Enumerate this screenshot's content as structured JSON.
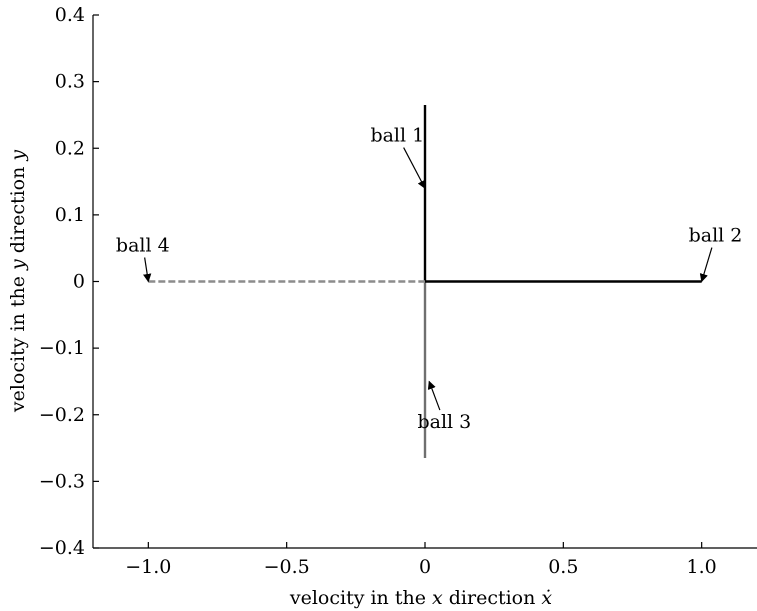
{
  "chart_data": {
    "type": "line",
    "title": "",
    "xlabel": {
      "prefix": "velocity in the ",
      "var": "x",
      "middle": " direction ",
      "dotvar": "ẋ"
    },
    "ylabel": {
      "prefix": "velocity in the ",
      "var": "y",
      "suffix": " direction ",
      "dotvar": "y"
    },
    "xlim": [
      -1.2,
      1.2
    ],
    "ylim": [
      -0.4,
      0.4
    ],
    "xticks": [
      -1.0,
      -0.5,
      0,
      0.5,
      1.0
    ],
    "xtick_labels": [
      "−1.0",
      "−0.5",
      "0",
      "0.5",
      "1.0"
    ],
    "yticks": [
      0.4,
      0.3,
      0.2,
      0.1,
      0,
      -0.1,
      -0.2,
      -0.3,
      -0.4
    ],
    "ytick_labels": [
      "0.4",
      "0.3",
      "0.2",
      "0.1",
      "0",
      "−0.1",
      "−0.2",
      "−0.3",
      "−0.4"
    ],
    "grid": false,
    "series": [
      {
        "name": "ball 1",
        "color": "#000000",
        "style": "solid",
        "x": [
          0,
          0
        ],
        "y": [
          0,
          0.265
        ]
      },
      {
        "name": "ball 2",
        "color": "#000000",
        "style": "solid",
        "x": [
          0,
          1.0
        ],
        "y": [
          0,
          0
        ]
      },
      {
        "name": "ball 3",
        "color": "#6f6f6f",
        "style": "solid",
        "x": [
          0,
          0
        ],
        "y": [
          0,
          -0.265
        ]
      },
      {
        "name": "ball 4",
        "color": "#8c8c8c",
        "style": "dashed",
        "x": [
          -1.0,
          0
        ],
        "y": [
          0,
          0
        ]
      }
    ],
    "annotations": [
      {
        "text": "ball 1",
        "point": [
          0,
          0.14
        ],
        "text_at": [
          -0.1,
          0.21
        ]
      },
      {
        "text": "ball 2",
        "point": [
          1.0,
          0.0
        ],
        "text_at": [
          1.05,
          0.06
        ]
      },
      {
        "text": "ball 3",
        "point": [
          0.015,
          -0.15
        ],
        "text_at": [
          0.07,
          -0.22
        ]
      },
      {
        "text": "ball 4",
        "point": [
          -1.0,
          0.0
        ],
        "text_at": [
          -1.02,
          0.045
        ]
      }
    ]
  }
}
